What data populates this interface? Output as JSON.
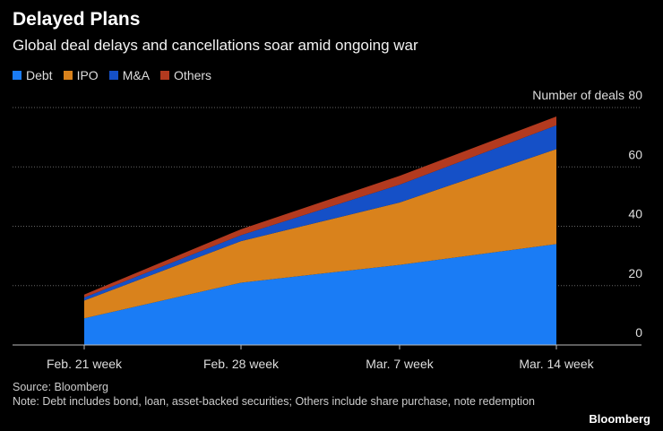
{
  "chart_data": {
    "type": "area",
    "stacked": true,
    "title": "Delayed Plans",
    "subtitle": "Global deal delays and cancellations soar amid ongoing war",
    "ylabel": "Number of deals",
    "ylim": [
      0,
      80
    ],
    "yticks": [
      0,
      20,
      40,
      60,
      80
    ],
    "categories": [
      "Feb. 21 week",
      "Feb. 28 week",
      "Mar. 7 week",
      "Mar. 14 week"
    ],
    "series": [
      {
        "name": "Debt",
        "color": "#1a7cf5",
        "values": [
          9,
          21,
          27,
          34
        ]
      },
      {
        "name": "IPO",
        "color": "#d9821c",
        "values": [
          6,
          14,
          21,
          32
        ]
      },
      {
        "name": "M&A",
        "color": "#1550c7",
        "values": [
          1,
          2,
          6,
          8
        ]
      },
      {
        "name": "Others",
        "color": "#b33a1f",
        "values": [
          1,
          2,
          3,
          3
        ]
      }
    ],
    "grid": true,
    "legend": "top-left",
    "y_axis_side": "right"
  },
  "footer": {
    "source": "Source: Bloomberg",
    "note": "Note: Debt includes bond, loan, asset-backed securities; Others include share purchase, note redemption",
    "brand": "Bloomberg"
  }
}
